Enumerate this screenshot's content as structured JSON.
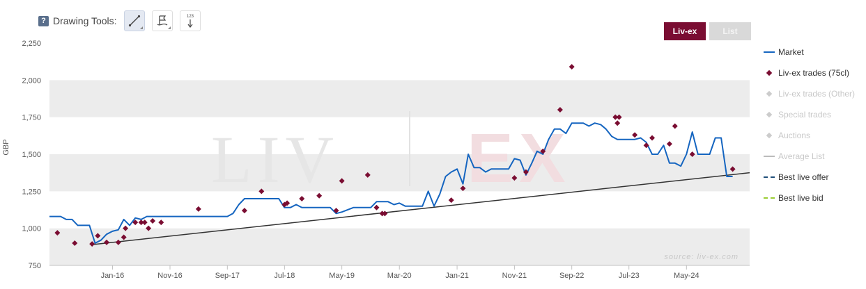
{
  "toolbar": {
    "help_label": "?",
    "label": "Drawing Tools:",
    "tools": [
      {
        "name": "line-tool",
        "icon": "trend-line-icon",
        "active": true
      },
      {
        "name": "flag-tool",
        "icon": "flag-icon",
        "active": false
      },
      {
        "name": "sort-tool",
        "icon": "numbered-sort-icon",
        "active": false,
        "glyph": "123"
      }
    ]
  },
  "toggles": {
    "livex_label": "Liv-ex",
    "list_label": "List"
  },
  "watermark": {
    "left": "LIV",
    "right": "EX",
    "source": "source: liv-ex.com"
  },
  "colors": {
    "market": "#1565c0",
    "trades": "#7a0d32",
    "trend": "#333333",
    "disabled": "#cccccc",
    "best_bid": "#9acd32",
    "brand": "#7a0d32"
  },
  "legend": [
    {
      "label": "Market",
      "symbol": "line",
      "color": "#1565c0",
      "enabled": true
    },
    {
      "label": "Liv-ex trades (75cl)",
      "symbol": "diamond",
      "color": "#7a0d32",
      "enabled": true
    },
    {
      "label": "Liv-ex trades (Other)",
      "symbol": "diamond",
      "color": "#cccccc",
      "enabled": false
    },
    {
      "label": "Special trades",
      "symbol": "diamond",
      "color": "#cccccc",
      "enabled": false
    },
    {
      "label": "Auctions",
      "symbol": "diamond",
      "color": "#cccccc",
      "enabled": false
    },
    {
      "label": "Average List",
      "symbol": "line",
      "color": "#bbbbbb",
      "enabled": false
    },
    {
      "label": "Best live offer",
      "symbol": "dash",
      "color": "#1f4e79",
      "enabled": true
    },
    {
      "label": "Best live bid",
      "symbol": "dash",
      "color": "#9acd32",
      "enabled": true
    }
  ],
  "chart_data": {
    "type": "line",
    "ylabel": "GBP",
    "xlabel": "",
    "ylim": [
      750,
      2250
    ],
    "y_ticks": [
      750,
      1000,
      1250,
      1500,
      1750,
      2000,
      2250
    ],
    "y_tick_labels": [
      "750",
      "1,000",
      "1,250",
      "1,500",
      "1,750",
      "2,000",
      "2,250"
    ],
    "xlim": [
      "2015-02-01",
      "2025-04-01"
    ],
    "x_ticks": [
      "2016-01-01",
      "2016-11-01",
      "2017-09-01",
      "2018-07-01",
      "2019-05-01",
      "2020-03-01",
      "2021-01-01",
      "2021-11-01",
      "2022-09-01",
      "2023-07-01",
      "2024-05-01"
    ],
    "x_tick_labels": [
      "Jan-16",
      "Nov-16",
      "Sep-17",
      "Jul-18",
      "May-19",
      "Mar-20",
      "Jan-21",
      "Nov-21",
      "Sep-22",
      "Jul-23",
      "May-24"
    ],
    "grid": "alternating bands",
    "legend_position": "right",
    "series": [
      {
        "name": "Market",
        "kind": "line",
        "points": [
          [
            "2015-02-01",
            1080
          ],
          [
            "2015-04-01",
            1080
          ],
          [
            "2015-05-01",
            1060
          ],
          [
            "2015-06-01",
            1060
          ],
          [
            "2015-07-01",
            1020
          ],
          [
            "2015-09-01",
            1020
          ],
          [
            "2015-10-01",
            900
          ],
          [
            "2015-11-01",
            920
          ],
          [
            "2015-12-01",
            960
          ],
          [
            "2016-01-01",
            980
          ],
          [
            "2016-02-01",
            990
          ],
          [
            "2016-03-01",
            1060
          ],
          [
            "2016-04-01",
            1020
          ],
          [
            "2016-05-01",
            1070
          ],
          [
            "2016-06-01",
            1060
          ],
          [
            "2016-07-01",
            1080
          ],
          [
            "2017-09-01",
            1080
          ],
          [
            "2017-10-01",
            1100
          ],
          [
            "2017-11-01",
            1160
          ],
          [
            "2017-12-01",
            1200
          ],
          [
            "2018-06-01",
            1200
          ],
          [
            "2018-07-01",
            1140
          ],
          [
            "2018-08-01",
            1140
          ],
          [
            "2018-09-01",
            1160
          ],
          [
            "2018-10-01",
            1140
          ],
          [
            "2019-03-01",
            1140
          ],
          [
            "2019-04-01",
            1100
          ],
          [
            "2019-05-01",
            1110
          ],
          [
            "2019-07-01",
            1140
          ],
          [
            "2019-10-01",
            1140
          ],
          [
            "2019-11-01",
            1180
          ],
          [
            "2020-01-01",
            1180
          ],
          [
            "2020-02-01",
            1160
          ],
          [
            "2020-03-01",
            1170
          ],
          [
            "2020-04-01",
            1150
          ],
          [
            "2020-07-01",
            1150
          ],
          [
            "2020-08-01",
            1250
          ],
          [
            "2020-09-01",
            1150
          ],
          [
            "2020-10-01",
            1230
          ],
          [
            "2020-11-01",
            1350
          ],
          [
            "2020-12-01",
            1380
          ],
          [
            "2021-01-01",
            1400
          ],
          [
            "2021-02-01",
            1300
          ],
          [
            "2021-03-01",
            1500
          ],
          [
            "2021-04-01",
            1410
          ],
          [
            "2021-05-01",
            1410
          ],
          [
            "2021-06-01",
            1380
          ],
          [
            "2021-07-01",
            1400
          ],
          [
            "2021-10-01",
            1400
          ],
          [
            "2021-11-01",
            1470
          ],
          [
            "2021-12-01",
            1460
          ],
          [
            "2022-01-01",
            1360
          ],
          [
            "2022-02-01",
            1440
          ],
          [
            "2022-03-01",
            1520
          ],
          [
            "2022-04-01",
            1500
          ],
          [
            "2022-05-01",
            1600
          ],
          [
            "2022-06-01",
            1670
          ],
          [
            "2022-07-01",
            1670
          ],
          [
            "2022-08-01",
            1640
          ],
          [
            "2022-09-01",
            1710
          ],
          [
            "2022-11-01",
            1710
          ],
          [
            "2022-12-01",
            1690
          ],
          [
            "2023-01-01",
            1710
          ],
          [
            "2023-02-01",
            1700
          ],
          [
            "2023-03-01",
            1670
          ],
          [
            "2023-04-01",
            1620
          ],
          [
            "2023-05-01",
            1600
          ],
          [
            "2023-08-01",
            1600
          ],
          [
            "2023-09-01",
            1610
          ],
          [
            "2023-10-01",
            1580
          ],
          [
            "2023-11-01",
            1500
          ],
          [
            "2023-12-01",
            1500
          ],
          [
            "2024-01-01",
            1560
          ],
          [
            "2024-02-01",
            1440
          ],
          [
            "2024-03-01",
            1440
          ],
          [
            "2024-04-01",
            1420
          ],
          [
            "2024-05-01",
            1500
          ],
          [
            "2024-06-01",
            1650
          ],
          [
            "2024-07-01",
            1500
          ],
          [
            "2024-09-01",
            1500
          ],
          [
            "2024-10-01",
            1610
          ],
          [
            "2024-11-01",
            1610
          ],
          [
            "2024-12-01",
            1350
          ],
          [
            "2025-01-01",
            1350
          ]
        ]
      },
      {
        "name": "Liv-ex trades (75cl)",
        "kind": "scatter",
        "points": [
          [
            "2015-03-15",
            970
          ],
          [
            "2015-06-15",
            900
          ],
          [
            "2015-09-15",
            895
          ],
          [
            "2015-10-15",
            950
          ],
          [
            "2015-12-01",
            905
          ],
          [
            "2016-02-01",
            905
          ],
          [
            "2016-03-01",
            940
          ],
          [
            "2016-03-10",
            1000
          ],
          [
            "2016-05-01",
            1040
          ],
          [
            "2016-06-01",
            1040
          ],
          [
            "2016-06-20",
            1040
          ],
          [
            "2016-07-10",
            1000
          ],
          [
            "2016-08-01",
            1050
          ],
          [
            "2016-09-15",
            1040
          ],
          [
            "2017-04-01",
            1130
          ],
          [
            "2017-12-01",
            1120
          ],
          [
            "2018-03-01",
            1250
          ],
          [
            "2018-07-01",
            1160
          ],
          [
            "2018-07-15",
            1170
          ],
          [
            "2018-10-01",
            1200
          ],
          [
            "2019-01-01",
            1220
          ],
          [
            "2019-04-01",
            1120
          ],
          [
            "2019-05-01",
            1320
          ],
          [
            "2019-09-15",
            1360
          ],
          [
            "2019-11-01",
            1140
          ],
          [
            "2019-12-01",
            1100
          ],
          [
            "2019-12-15",
            1100
          ],
          [
            "2020-12-01",
            1190
          ],
          [
            "2021-02-01",
            1270
          ],
          [
            "2021-11-01",
            1340
          ],
          [
            "2022-01-01",
            1380
          ],
          [
            "2022-04-01",
            1520
          ],
          [
            "2022-07-01",
            1800
          ],
          [
            "2022-09-01",
            2090
          ],
          [
            "2023-04-20",
            1750
          ],
          [
            "2023-05-01",
            1710
          ],
          [
            "2023-05-10",
            1750
          ],
          [
            "2023-08-01",
            1630
          ],
          [
            "2023-10-01",
            1560
          ],
          [
            "2023-11-01",
            1610
          ],
          [
            "2024-02-01",
            1570
          ],
          [
            "2024-03-01",
            1690
          ],
          [
            "2024-06-01",
            1500
          ],
          [
            "2025-01-01",
            1400
          ]
        ]
      },
      {
        "name": "Average List",
        "kind": "trend",
        "points": [
          [
            "2015-09-15",
            890
          ],
          [
            "2025-04-01",
            1375
          ]
        ]
      }
    ]
  }
}
